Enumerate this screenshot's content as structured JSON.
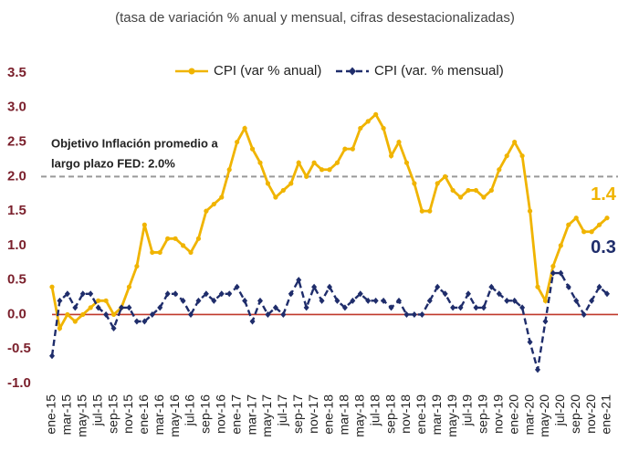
{
  "chart_data": {
    "type": "line",
    "subtitle": "(tasa de variación % anual y mensual, cifras desestacionalizadas)",
    "categories": [
      "ene-15",
      null,
      "mar-15",
      null,
      "may-15",
      null,
      "jul-15",
      null,
      "sep-15",
      null,
      "nov-15",
      null,
      "ene-16",
      null,
      "mar-16",
      null,
      "may-16",
      null,
      "jul-16",
      null,
      "sep-16",
      null,
      "nov-16",
      null,
      "ene-17",
      null,
      "mar-17",
      null,
      "may-17",
      null,
      "jul-17",
      null,
      "sep-17",
      null,
      "nov-17",
      null,
      "ene-18",
      null,
      "mar-18",
      null,
      "may-18",
      null,
      "jul-18",
      null,
      "sep-18",
      null,
      "nov-18",
      null,
      "ene-19",
      null,
      "mar-19",
      null,
      "may-19",
      null,
      "jul-19",
      null,
      "sep-19",
      null,
      "nov-19",
      null,
      "ene-20",
      null,
      "mar-20",
      null,
      "may-20",
      null,
      "jul-20",
      null,
      "sep-20",
      null,
      "nov-20",
      null,
      "ene-21"
    ],
    "series": [
      {
        "name": "CPI (var % anual)",
        "color": "#f0b400",
        "style": "solid",
        "marker": "circle",
        "values": [
          0.4,
          -0.2,
          0.0,
          -0.1,
          0.0,
          0.1,
          0.2,
          0.2,
          0.0,
          0.1,
          0.4,
          0.7,
          1.3,
          0.9,
          0.9,
          1.1,
          1.1,
          1.0,
          0.9,
          1.1,
          1.5,
          1.6,
          1.7,
          2.1,
          2.5,
          2.7,
          2.4,
          2.2,
          1.9,
          1.7,
          1.8,
          1.9,
          2.2,
          2.0,
          2.2,
          2.1,
          2.1,
          2.2,
          2.4,
          2.4,
          2.7,
          2.8,
          2.9,
          2.7,
          2.3,
          2.5,
          2.2,
          1.9,
          1.5,
          1.5,
          1.9,
          2.0,
          1.8,
          1.7,
          1.8,
          1.8,
          1.7,
          1.8,
          2.1,
          2.3,
          2.5,
          2.3,
          1.5,
          0.4,
          0.2,
          0.7,
          1.0,
          1.3,
          1.4,
          1.2,
          1.2,
          1.3,
          1.4
        ]
      },
      {
        "name": "CPI (var. % mensual)",
        "color": "#1f2d6b",
        "style": "dashed",
        "marker": "diamond",
        "values": [
          -0.6,
          0.2,
          0.3,
          0.1,
          0.3,
          0.3,
          0.1,
          0.0,
          -0.2,
          0.1,
          0.1,
          -0.1,
          -0.1,
          0.0,
          0.1,
          0.3,
          0.3,
          0.2,
          0.0,
          0.2,
          0.3,
          0.2,
          0.3,
          0.3,
          0.4,
          0.2,
          -0.1,
          0.2,
          0.0,
          0.1,
          0.0,
          0.3,
          0.5,
          0.1,
          0.4,
          0.2,
          0.4,
          0.2,
          0.1,
          0.2,
          0.3,
          0.2,
          0.2,
          0.2,
          0.1,
          0.2,
          0.0,
          0.0,
          0.0,
          0.2,
          0.4,
          0.3,
          0.1,
          0.1,
          0.3,
          0.1,
          0.1,
          0.4,
          0.3,
          0.2,
          0.2,
          0.1,
          -0.4,
          -0.8,
          -0.1,
          0.6,
          0.6,
          0.4,
          0.2,
          0.0,
          0.2,
          0.4,
          0.3
        ]
      }
    ],
    "ylim": [
      -1,
      3.5
    ],
    "yticks": [
      3.5,
      {
        "value": 3,
        "label": "3.0"
      },
      2.5,
      {
        "value": 2,
        "label": "2.0"
      },
      1.5,
      {
        "value": 1,
        "label": "1.0"
      },
      0.5,
      {
        "value": 0,
        "label": "0.0"
      },
      -0.5,
      {
        "value": -1,
        "label": "-1.0"
      }
    ],
    "hlines": [
      {
        "value": 2,
        "color": "#999999",
        "style": "dashed"
      },
      {
        "value": 0,
        "color": "#c0392b",
        "style": "solid"
      }
    ],
    "annotation_lines": [
      "Objetivo Inflación promedio a",
      "largo plazo FED: 2.0%"
    ],
    "legend": "top"
  }
}
